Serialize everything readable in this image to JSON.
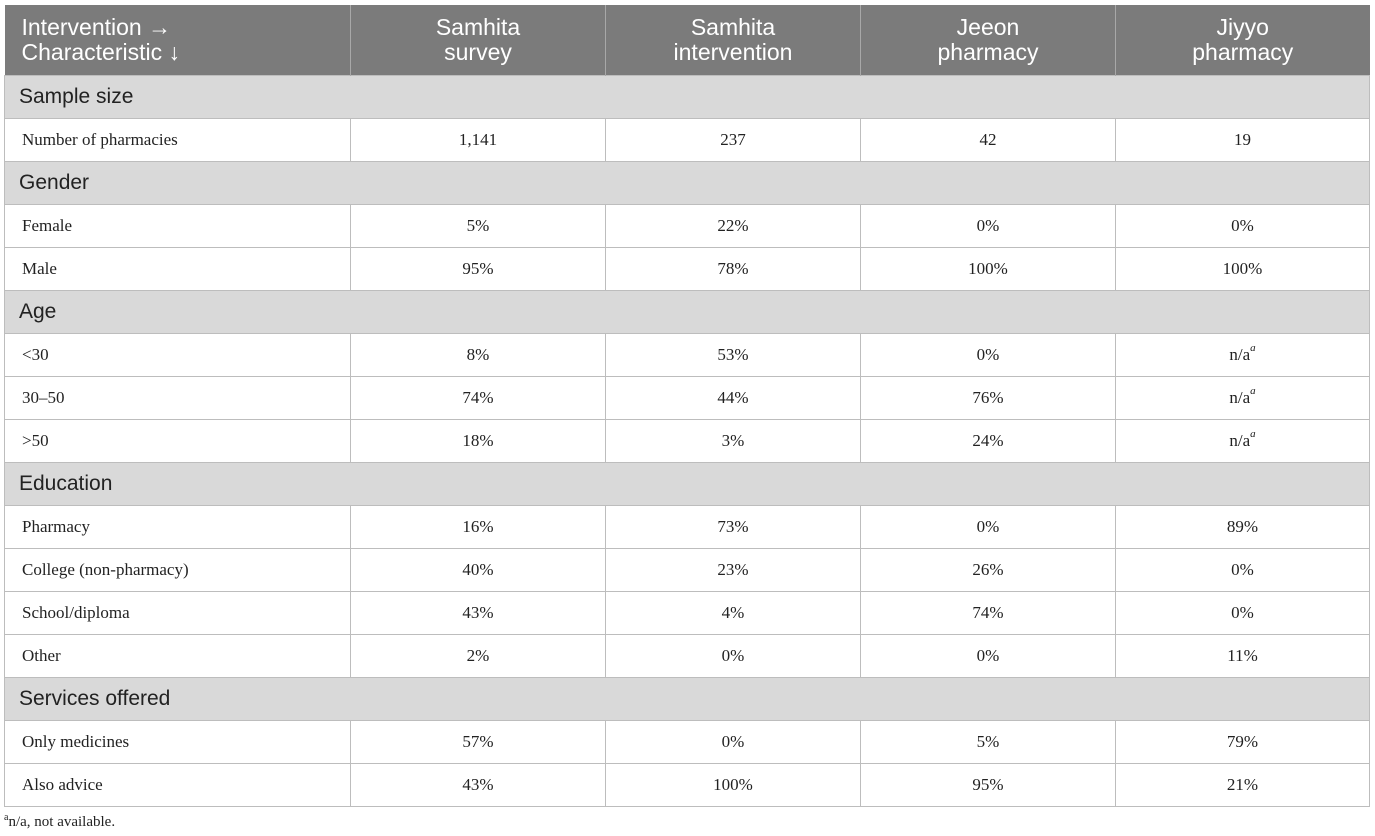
{
  "header": {
    "col0_line1": "Intervention →",
    "col0_line2": "Characteristic ↓",
    "cols": [
      {
        "line1": "Samhita",
        "line2": "survey"
      },
      {
        "line1": "Samhita",
        "line2": "intervention"
      },
      {
        "line1": "Jeeon",
        "line2": "pharmacy"
      },
      {
        "line1": "Jiyyo",
        "line2": "pharmacy"
      }
    ]
  },
  "sections": {
    "sample_size": {
      "title": "Sample size",
      "rows": [
        {
          "label": "Number of pharmacies",
          "values": [
            "1,141",
            "237",
            "42",
            "19"
          ]
        }
      ]
    },
    "gender": {
      "title": "Gender",
      "rows": [
        {
          "label": "Female",
          "values": [
            "5%",
            "22%",
            "0%",
            "0%"
          ]
        },
        {
          "label": "Male",
          "values": [
            "95%",
            "78%",
            "100%",
            "100%"
          ]
        }
      ]
    },
    "age": {
      "title": "Age",
      "rows": [
        {
          "label": "<30",
          "values": [
            "8%",
            "53%",
            "0%",
            "n/a"
          ]
        },
        {
          "label": "30–50",
          "values": [
            "74%",
            "44%",
            "76%",
            "n/a"
          ]
        },
        {
          "label": ">50",
          "values": [
            "18%",
            "3%",
            "24%",
            "n/a"
          ]
        }
      ]
    },
    "education": {
      "title": "Education",
      "rows": [
        {
          "label": "Pharmacy",
          "values": [
            "16%",
            "73%",
            "0%",
            "89%"
          ]
        },
        {
          "label": "College (non-pharmacy)",
          "values": [
            "40%",
            "23%",
            "26%",
            "0%"
          ]
        },
        {
          "label": "School/diploma",
          "values": [
            "43%",
            "4%",
            "74%",
            "0%"
          ]
        },
        {
          "label": "Other",
          "values": [
            "2%",
            "0%",
            "0%",
            "11%"
          ]
        }
      ]
    },
    "services": {
      "title": "Services offered",
      "rows": [
        {
          "label": "Only medicines",
          "values": [
            "57%",
            "0%",
            "5%",
            "79%"
          ]
        },
        {
          "label": "Also advice",
          "values": [
            "43%",
            "100%",
            "95%",
            "21%"
          ]
        }
      ]
    }
  },
  "note_marker": "a",
  "footnote": {
    "marker": "a",
    "text": "n/a, not available."
  }
}
